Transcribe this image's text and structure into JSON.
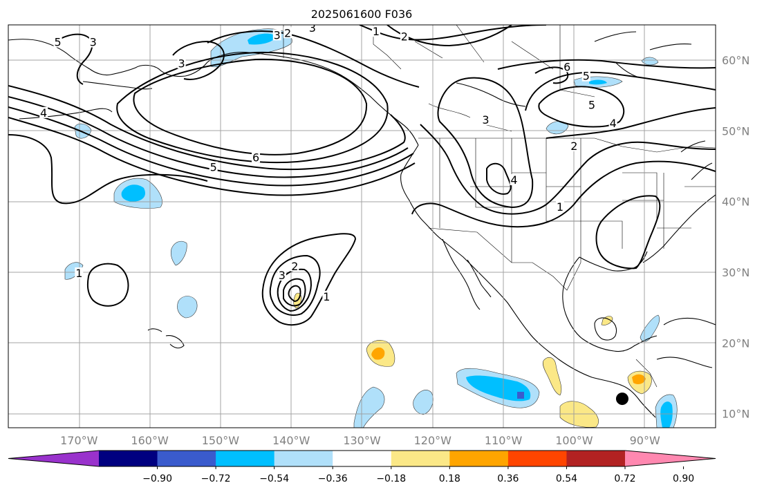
{
  "title": "2025061600 F036",
  "colors": {
    "ocean": "#ffffff",
    "grid": "#9a9a9a",
    "contour": "#000000",
    "tick_text": "#808080"
  },
  "map": {
    "projection": "PlateCarree",
    "lon_range": [
      -180,
      -80
    ],
    "lat_range": [
      8,
      65
    ],
    "gridlines": true,
    "lon_ticks": [
      {
        "value": -170,
        "label": "170°W"
      },
      {
        "value": -160,
        "label": "160°W"
      },
      {
        "value": -150,
        "label": "150°W"
      },
      {
        "value": -140,
        "label": "140°W"
      },
      {
        "value": -130,
        "label": "130°W"
      },
      {
        "value": -120,
        "label": "120°W"
      },
      {
        "value": -110,
        "label": "110°W"
      },
      {
        "value": -100,
        "label": "100°W"
      },
      {
        "value": -90,
        "label": "90°W"
      }
    ],
    "lat_ticks": [
      {
        "value": 60,
        "label": "60°N"
      },
      {
        "value": 50,
        "label": "50°N"
      },
      {
        "value": 40,
        "label": "40°N"
      },
      {
        "value": 30,
        "label": "30°N"
      },
      {
        "value": 20,
        "label": "20°N"
      },
      {
        "value": 10,
        "label": "10°N"
      }
    ],
    "contour_labels": [
      {
        "text": "1",
        "lon": -128,
        "lat": 64
      },
      {
        "text": "2",
        "lon": -124,
        "lat": 63.3
      },
      {
        "text": "3",
        "lon": -168,
        "lat": 62.5
      },
      {
        "text": "3",
        "lon": -155.5,
        "lat": 59.5
      },
      {
        "text": "3",
        "lon": -142,
        "lat": 63.5
      },
      {
        "text": "3",
        "lon": -137,
        "lat": 64.5
      },
      {
        "text": "2",
        "lon": -140.5,
        "lat": 63.8
      },
      {
        "text": "5",
        "lon": -173,
        "lat": 62.5
      },
      {
        "text": "4",
        "lon": -175,
        "lat": 52.5
      },
      {
        "text": "5",
        "lon": -151,
        "lat": 44.8
      },
      {
        "text": "6",
        "lon": -145,
        "lat": 46.2
      },
      {
        "text": "6",
        "lon": -101,
        "lat": 59
      },
      {
        "text": "5",
        "lon": -98.3,
        "lat": 57.7
      },
      {
        "text": "5",
        "lon": -97.5,
        "lat": 53.6
      },
      {
        "text": "4",
        "lon": -94.5,
        "lat": 51
      },
      {
        "text": "2",
        "lon": -100,
        "lat": 47.8
      },
      {
        "text": "3",
        "lon": -112.5,
        "lat": 51.5
      },
      {
        "text": "4",
        "lon": -108.5,
        "lat": 43
      },
      {
        "text": "1",
        "lon": -102,
        "lat": 39.2
      },
      {
        "text": "1",
        "lon": -170,
        "lat": 29.8
      },
      {
        "text": "2",
        "lon": -139.5,
        "lat": 30.8
      },
      {
        "text": "3",
        "lon": -141.3,
        "lat": 29.5
      },
      {
        "text": "1",
        "lon": -135,
        "lat": 26.5
      }
    ],
    "markers": [
      {
        "type": "black-dot",
        "lon": -93.2,
        "lat": 12.1
      }
    ]
  },
  "colorbar": {
    "colors": [
      "#9932cc",
      "#000080",
      "#3a5bcd",
      "#00bfff",
      "#b0e0fa",
      "#ffffff",
      "#fbe887",
      "#ffa500",
      "#ff4500",
      "#b22222",
      "#ff88b0"
    ],
    "ticks": [
      "−0.90",
      "−0.72",
      "−0.54",
      "−0.36",
      "−0.18",
      "0.18",
      "0.36",
      "0.54",
      "0.72",
      "0.90"
    ],
    "extend": "both"
  }
}
